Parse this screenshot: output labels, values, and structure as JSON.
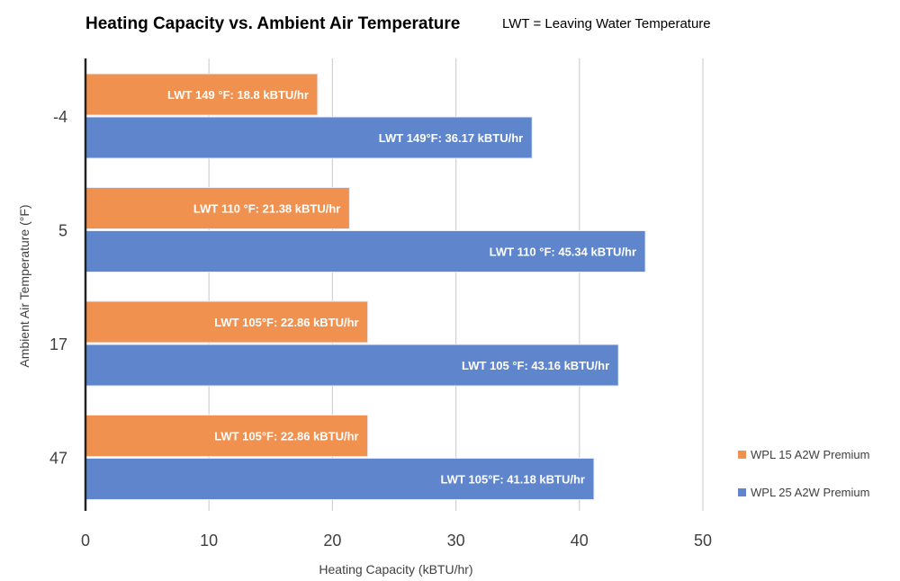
{
  "chart_data": {
    "type": "bar",
    "orientation": "horizontal",
    "title": "Heating Capacity vs. Ambient Air Temperature",
    "subtitle": "LWT = Leaving Water Temperature",
    "xlabel": "Heating Capacity (kBTU/hr)",
    "ylabel": "Ambient Air Temperature  (°F)",
    "xlim": [
      0,
      50
    ],
    "xticks": [
      "0",
      "10",
      "20",
      "30",
      "40",
      "50"
    ],
    "xtick_values": [
      0,
      10,
      20,
      30,
      40,
      50
    ],
    "grid": "vertical",
    "legend_position": "right",
    "categories": [
      "-4",
      "5",
      "17",
      "47"
    ],
    "series": [
      {
        "name": "WPL 15 A2W Premium",
        "color": "#F0914F",
        "values": [
          18.8,
          21.38,
          22.86,
          22.86
        ],
        "labels": [
          "LWT 149 °F:  18.8 kBTU/hr",
          "LWT 110 °F:  21.38 kBTU/hr",
          "LWT 105°F: 22.86 kBTU/hr",
          "LWT 105°F: 22.86 kBTU/hr"
        ]
      },
      {
        "name": "WPL 25 A2W Premium",
        "color": "#5F86CC",
        "values": [
          36.17,
          45.34,
          43.16,
          41.18
        ],
        "labels": [
          "LWT 149°F: 36.17 kBTU/hr",
          "LWT 110 °F:  45.34 kBTU/hr",
          "LWT 105 °F: 43.16 kBTU/hr",
          "LWT 105°F: 41.18 kBTU/hr"
        ]
      }
    ]
  }
}
